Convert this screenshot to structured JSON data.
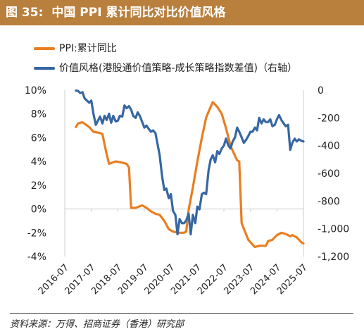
{
  "header": {
    "figure_number": "图 35:",
    "title": "中国 PPI 累计同比对比价值风格"
  },
  "colors": {
    "header_bg": "#b97f3d",
    "series_ppi": "#e97e21",
    "series_spread": "#3767a2",
    "axis": "#cccccc"
  },
  "source": "资料来源：万得、招商证券（香港）研究部",
  "chart_data": {
    "type": "line",
    "xlim": [
      2016.5,
      2025.5
    ],
    "x_ticks": [
      {
        "label": "2016-07",
        "value": 2016.5
      },
      {
        "label": "2017-07",
        "value": 2017.5
      },
      {
        "label": "2018-07",
        "value": 2018.5
      },
      {
        "label": "2019-07",
        "value": 2019.5
      },
      {
        "label": "2020-07",
        "value": 2020.5
      },
      {
        "label": "2021-07",
        "value": 2021.5
      },
      {
        "label": "2022-07",
        "value": 2022.5
      },
      {
        "label": "2023-07",
        "value": 2023.5
      },
      {
        "label": "2024-07",
        "value": 2024.5
      },
      {
        "label": "2025-07",
        "value": 2025.5
      }
    ],
    "y_left": {
      "min": -4,
      "max": 10,
      "ticks": [
        {
          "label": "10%",
          "value": 10
        },
        {
          "label": "8%",
          "value": 8
        },
        {
          "label": "6%",
          "value": 6
        },
        {
          "label": "4%",
          "value": 4
        },
        {
          "label": "2%",
          "value": 2
        },
        {
          "label": "0%",
          "value": 0
        },
        {
          "label": "-2%",
          "value": -2
        },
        {
          "label": "-4%",
          "value": -4
        }
      ]
    },
    "y_right": {
      "min": -1200,
      "max": 0,
      "ticks": [
        {
          "label": "0",
          "value": 0
        },
        {
          "label": "-200",
          "value": -200
        },
        {
          "label": "-400",
          "value": -400
        },
        {
          "label": "-600",
          "value": -600
        },
        {
          "label": "-800",
          "value": -800
        },
        {
          "label": "-1,000",
          "value": -1000
        },
        {
          "label": "-1,200",
          "value": -1200
        }
      ]
    },
    "grid": false,
    "legend_position": "top-left",
    "series": [
      {
        "name": "PPI:累计同比",
        "axis": "left",
        "color": "#e97e21",
        "points": [
          [
            2016.92,
            6.9
          ],
          [
            2017.0,
            7.2
          ],
          [
            2017.17,
            7.3
          ],
          [
            2017.42,
            6.9
          ],
          [
            2017.58,
            6.5
          ],
          [
            2017.83,
            6.4
          ],
          [
            2017.92,
            6.3
          ],
          [
            2018.08,
            4.6
          ],
          [
            2018.17,
            3.8
          ],
          [
            2018.42,
            4.0
          ],
          [
            2018.67,
            3.9
          ],
          [
            2018.83,
            3.8
          ],
          [
            2018.92,
            3.5
          ],
          [
            2019.0,
            0.1
          ],
          [
            2019.17,
            0.1
          ],
          [
            2019.42,
            0.3
          ],
          [
            2019.58,
            0.1
          ],
          [
            2019.75,
            -0.2
          ],
          [
            2019.92,
            -0.4
          ],
          [
            2020.08,
            -0.5
          ],
          [
            2020.25,
            -1.0
          ],
          [
            2020.42,
            -1.7
          ],
          [
            2020.58,
            -1.9
          ],
          [
            2020.75,
            -2.0
          ],
          [
            2021.0,
            -2.0
          ],
          [
            2021.08,
            -1.9
          ],
          [
            2021.17,
            -0.1
          ],
          [
            2021.33,
            1.8
          ],
          [
            2021.5,
            4.0
          ],
          [
            2021.67,
            6.0
          ],
          [
            2021.83,
            7.7
          ],
          [
            2022.0,
            8.6
          ],
          [
            2022.08,
            9.0
          ],
          [
            2022.25,
            8.6
          ],
          [
            2022.42,
            8.0
          ],
          [
            2022.58,
            6.8
          ],
          [
            2022.75,
            5.3
          ],
          [
            2023.0,
            4.1
          ],
          [
            2023.08,
            4.0
          ],
          [
            2023.17,
            -1.2
          ],
          [
            2023.42,
            -2.6
          ],
          [
            2023.58,
            -3.0
          ],
          [
            2023.67,
            -3.2
          ],
          [
            2023.83,
            -3.1
          ],
          [
            2024.08,
            -3.1
          ],
          [
            2024.17,
            -2.7
          ],
          [
            2024.33,
            -2.6
          ],
          [
            2024.5,
            -2.2
          ],
          [
            2024.67,
            -2.0
          ],
          [
            2024.83,
            -2.1
          ],
          [
            2025.0,
            -2.3
          ],
          [
            2025.08,
            -2.2
          ],
          [
            2025.25,
            -2.4
          ],
          [
            2025.42,
            -2.8
          ],
          [
            2025.5,
            -2.9
          ]
        ]
      },
      {
        "name": "价值风格(港股通价值策略-成长策略指数差值)（右轴）",
        "axis": "right",
        "color": "#3767a2",
        "points": [
          [
            2016.92,
            -3
          ],
          [
            2017.0,
            -5
          ],
          [
            2017.08,
            -20
          ],
          [
            2017.17,
            -15
          ],
          [
            2017.25,
            -60
          ],
          [
            2017.42,
            -90
          ],
          [
            2017.5,
            -75
          ],
          [
            2017.58,
            -170
          ],
          [
            2017.67,
            -250
          ],
          [
            2017.75,
            -220
          ],
          [
            2017.83,
            -190
          ],
          [
            2017.92,
            -240
          ],
          [
            2018.0,
            -185
          ],
          [
            2018.08,
            -215
          ],
          [
            2018.17,
            -170
          ],
          [
            2018.25,
            -235
          ],
          [
            2018.33,
            -185
          ],
          [
            2018.42,
            -225
          ],
          [
            2018.5,
            -220
          ],
          [
            2018.58,
            -185
          ],
          [
            2018.67,
            -190
          ],
          [
            2018.75,
            -110
          ],
          [
            2018.83,
            -130
          ],
          [
            2018.92,
            -115
          ],
          [
            2019.0,
            -140
          ],
          [
            2019.08,
            -185
          ],
          [
            2019.17,
            -200
          ],
          [
            2019.25,
            -160
          ],
          [
            2019.33,
            -185
          ],
          [
            2019.42,
            -230
          ],
          [
            2019.5,
            -270
          ],
          [
            2019.58,
            -255
          ],
          [
            2019.67,
            -280
          ],
          [
            2019.75,
            -300
          ],
          [
            2019.83,
            -290
          ],
          [
            2019.92,
            -310
          ],
          [
            2020.0,
            -390
          ],
          [
            2020.08,
            -470
          ],
          [
            2020.17,
            -620
          ],
          [
            2020.25,
            -720
          ],
          [
            2020.33,
            -710
          ],
          [
            2020.42,
            -780
          ],
          [
            2020.5,
            -750
          ],
          [
            2020.58,
            -870
          ],
          [
            2020.67,
            -900
          ],
          [
            2020.75,
            -1040
          ],
          [
            2020.83,
            -930
          ],
          [
            2020.92,
            -960
          ],
          [
            2021.0,
            -960
          ],
          [
            2021.08,
            -940
          ],
          [
            2021.17,
            -890
          ],
          [
            2021.25,
            -1040
          ],
          [
            2021.33,
            -900
          ],
          [
            2021.42,
            -960
          ],
          [
            2021.5,
            -840
          ],
          [
            2021.58,
            -860
          ],
          [
            2021.67,
            -750
          ],
          [
            2021.75,
            -740
          ],
          [
            2021.83,
            -750
          ],
          [
            2021.92,
            -580
          ],
          [
            2022.0,
            -500
          ],
          [
            2022.08,
            -470
          ],
          [
            2022.17,
            -520
          ],
          [
            2022.25,
            -440
          ],
          [
            2022.33,
            -460
          ],
          [
            2022.42,
            -420
          ],
          [
            2022.5,
            -400
          ],
          [
            2022.58,
            -350
          ],
          [
            2022.67,
            -400
          ],
          [
            2022.75,
            -420
          ],
          [
            2022.83,
            -370
          ],
          [
            2022.92,
            -340
          ],
          [
            2023.0,
            -270
          ],
          [
            2023.08,
            -300
          ],
          [
            2023.17,
            -340
          ],
          [
            2023.25,
            -380
          ],
          [
            2023.33,
            -360
          ],
          [
            2023.42,
            -330
          ],
          [
            2023.5,
            -300
          ],
          [
            2023.58,
            -300
          ],
          [
            2023.67,
            -270
          ],
          [
            2023.75,
            -290
          ],
          [
            2023.83,
            -200
          ],
          [
            2023.92,
            -240
          ],
          [
            2024.0,
            -210
          ],
          [
            2024.08,
            -230
          ],
          [
            2024.17,
            -230
          ],
          [
            2024.25,
            -210
          ],
          [
            2024.33,
            -260
          ],
          [
            2024.42,
            -250
          ],
          [
            2024.5,
            -210
          ],
          [
            2024.58,
            -180
          ],
          [
            2024.67,
            -215
          ],
          [
            2024.75,
            -240
          ],
          [
            2024.83,
            -260
          ],
          [
            2024.92,
            -250
          ],
          [
            2025.0,
            -430
          ],
          [
            2025.08,
            -380
          ],
          [
            2025.17,
            -350
          ],
          [
            2025.25,
            -370
          ],
          [
            2025.33,
            -355
          ],
          [
            2025.42,
            -365
          ],
          [
            2025.5,
            -370
          ]
        ]
      }
    ]
  }
}
